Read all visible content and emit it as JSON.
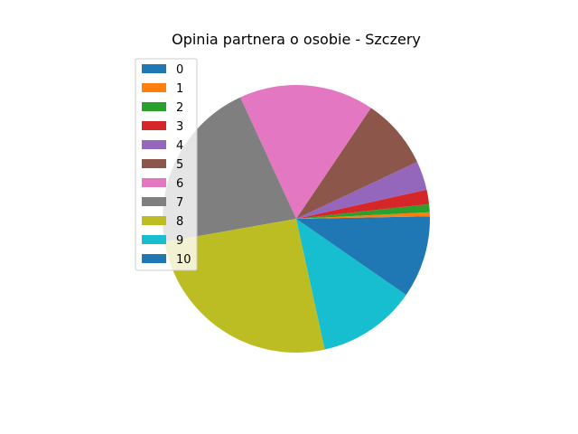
{
  "chart_data": {
    "type": "pie",
    "title": "Opinia partnera o osobie - Szczery",
    "categories": [
      "0",
      "1",
      "2",
      "3",
      "4",
      "5",
      "6",
      "7",
      "8",
      "9",
      "10"
    ],
    "values": [
      0.3,
      0.5,
      1.0,
      1.8,
      3.6,
      8.8,
      16.8,
      21.5,
      26.4,
      12.3,
      9.9
    ],
    "colors": [
      "#1f77b4",
      "#ff7f0e",
      "#2ca02c",
      "#d62728",
      "#9467bd",
      "#8c564b",
      "#e377c2",
      "#7f7f7f",
      "#bcbd22",
      "#17becf",
      "#1f77b4"
    ],
    "start_angle_deg": 0,
    "direction": "counterclockwise",
    "legend_position": "upper-left"
  }
}
